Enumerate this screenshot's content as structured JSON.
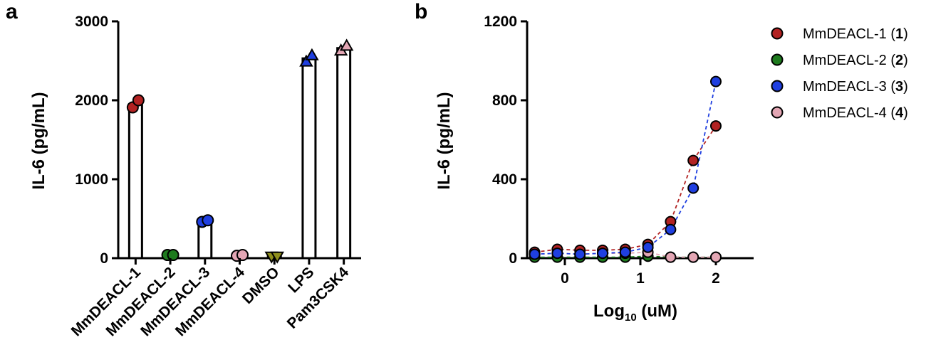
{
  "panels": {
    "a": "a",
    "b": "b"
  },
  "colors": {
    "MmDEACL-1": "#b22222",
    "MmDEACL-2": "#1e7b1e",
    "MmDEACL-3": "#1f3fe0",
    "MmDEACL-4": "#e3a6b4",
    "DMSO": "#8f8f1c",
    "LPS": "#1f3fe0",
    "Pam3CSK4": "#e3a6b4"
  },
  "chart_data": [
    {
      "type": "bar",
      "panel": "a",
      "title": "",
      "xlabel": "",
      "ylabel": "IL-6 (pg/mL)",
      "ylim": [
        0,
        3000
      ],
      "yticks": [
        0,
        1000,
        2000,
        3000
      ],
      "categories": [
        "MmDEACL-1",
        "MmDEACL-2",
        "MmDEACL-3",
        "MmDEACL-4",
        "DMSO",
        "LPS",
        "Pam3CSK4"
      ],
      "values": [
        1950,
        40,
        470,
        30,
        20,
        2530,
        2660
      ],
      "replicates": [
        [
          1910,
          2000
        ],
        [
          40,
          40
        ],
        [
          460,
          480
        ],
        [
          30,
          40
        ],
        [
          20,
          20
        ],
        [
          2490,
          2570
        ],
        [
          2630,
          2690
        ]
      ],
      "markers": [
        "circle",
        "circle",
        "circle",
        "circle",
        "triangle-down",
        "triangle-up",
        "triangle-up"
      ],
      "grid": false
    },
    {
      "type": "scatter",
      "panel": "b",
      "title": "",
      "xlabel": "Log10 (uM)",
      "xlabel_base": "Log",
      "xlabel_sub": "10",
      "xlabel_rest": " (uM)",
      "ylabel": "IL-6 (pg/mL)",
      "xlim": [
        -0.5,
        2.5
      ],
      "ylim": [
        0,
        1200
      ],
      "xticks": [
        0,
        1,
        2
      ],
      "yticks": [
        0,
        400,
        800,
        1200
      ],
      "x": [
        -0.4,
        -0.1,
        0.2,
        0.5,
        0.8,
        1.1,
        1.4,
        1.7,
        2.0
      ],
      "series": [
        {
          "name": "MmDEACL-1",
          "num": "1",
          "values": [
            30,
            45,
            40,
            40,
            45,
            70,
            185,
            495,
            670
          ]
        },
        {
          "name": "MmDEACL-2",
          "num": "2",
          "values": [
            5,
            5,
            5,
            5,
            5,
            10,
            5,
            5,
            5
          ]
        },
        {
          "name": "MmDEACL-3",
          "num": "3",
          "values": [
            20,
            25,
            20,
            25,
            30,
            55,
            145,
            355,
            895
          ]
        },
        {
          "name": "MmDEACL-4",
          "num": "4",
          "values": [
            20,
            25,
            20,
            25,
            25,
            30,
            5,
            5,
            5
          ]
        }
      ],
      "legend": "right",
      "grid": false
    }
  ]
}
